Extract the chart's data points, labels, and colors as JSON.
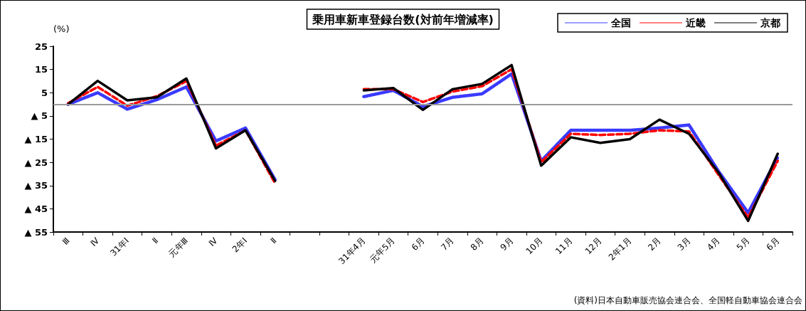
{
  "chart_data": {
    "type": "line",
    "title": "乗用車新車登録台数(対前年増減率)",
    "ylabel": "(%)",
    "categories": [
      "Ⅲ",
      "Ⅳ",
      "31年Ⅰ",
      "Ⅱ",
      "元年Ⅲ",
      "Ⅳ",
      "2年Ⅰ",
      "Ⅱ",
      null,
      null,
      "31年4月",
      "元年5月",
      "6月",
      "7月",
      "8月",
      "9月",
      "10月",
      "11月",
      "12月",
      "2年1月",
      "2月",
      "3月",
      "4月",
      "5月",
      "6月"
    ],
    "series": [
      {
        "name": "全国",
        "color": "#3a3aff",
        "line_style": "dotted",
        "values": [
          0,
          5,
          -2.1,
          2,
          7.5,
          -15.8,
          -10.2,
          -32.5,
          null,
          null,
          3.3,
          6,
          -1,
          3,
          4.5,
          13.1,
          -24.4,
          -11.2,
          -11.2,
          -11.2,
          -10.2,
          -8.9,
          -28.9,
          -46.7,
          -22.9
        ]
      },
      {
        "name": "近畿",
        "color": "#ff0000",
        "line_style": "dashed",
        "values": [
          0.5,
          7.5,
          -0.6,
          3.5,
          10,
          -17.8,
          -11.2,
          -34,
          null,
          null,
          6.5,
          6.5,
          1,
          5.5,
          7.8,
          15.1,
          -24.9,
          -12.7,
          -13.2,
          -12.7,
          -11.2,
          -11.7,
          -30.4,
          -48.7,
          -24.4
        ]
      },
      {
        "name": "京都",
        "color": "#000000",
        "line_style": "solid",
        "values": [
          0,
          10.1,
          1.7,
          3,
          11.1,
          -19,
          -11.2,
          -33,
          null,
          null,
          6,
          7,
          -2.4,
          6.5,
          8.8,
          16.9,
          -26.4,
          -14.2,
          -16.6,
          -15,
          -6.6,
          -12.7,
          -29.4,
          -50.2,
          -21.3
        ]
      }
    ],
    "ylim": [
      -55,
      25
    ],
    "yticks": [
      25,
      15,
      5,
      {
        "value": -5,
        "label": "▲ 5"
      },
      {
        "value": -15,
        "label": "▲ 15"
      },
      {
        "value": -25,
        "label": "▲ 25"
      },
      {
        "value": -35,
        "label": "▲ 35"
      },
      {
        "value": -45,
        "label": "▲ 45"
      },
      {
        "value": -55,
        "label": "▲ 55"
      }
    ],
    "ref_lines": [
      {
        "axis": "y",
        "value": 0,
        "color": "#999999"
      }
    ],
    "grid": false,
    "legend": "top right",
    "marker": "none",
    "annotations": [
      "(資料)日本自動車販売協会連合会、全国軽自動車協会連合会"
    ]
  }
}
